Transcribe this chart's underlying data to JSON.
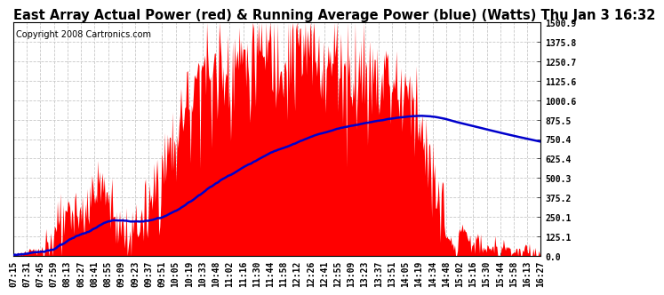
{
  "title": "East Array Actual Power (red) & Running Average Power (blue) (Watts) Thu Jan 3 16:32",
  "copyright": "Copyright 2008 Cartronics.com",
  "yticks": [
    0.0,
    125.1,
    250.1,
    375.2,
    500.3,
    625.4,
    750.4,
    875.5,
    1000.6,
    1125.6,
    1250.7,
    1375.8,
    1500.9
  ],
  "ymax": 1500.9,
  "ymin": 0.0,
  "xtick_labels": [
    "07:15",
    "07:31",
    "07:45",
    "07:59",
    "08:13",
    "08:27",
    "08:41",
    "08:55",
    "09:09",
    "09:23",
    "09:37",
    "09:51",
    "10:05",
    "10:19",
    "10:33",
    "10:48",
    "11:02",
    "11:16",
    "11:30",
    "11:44",
    "11:58",
    "12:12",
    "12:26",
    "12:41",
    "12:55",
    "13:09",
    "13:23",
    "13:37",
    "13:51",
    "14:05",
    "14:19",
    "14:34",
    "14:48",
    "15:02",
    "15:16",
    "15:30",
    "15:44",
    "15:58",
    "16:13",
    "16:27"
  ],
  "background_color": "#ffffff",
  "plot_bg_color": "#ffffff",
  "grid_color": "#c8c8c8",
  "red_color": "#ff0000",
  "blue_color": "#0000cc",
  "title_fontsize": 10.5,
  "tick_fontsize": 7.0,
  "copyright_fontsize": 7.0
}
